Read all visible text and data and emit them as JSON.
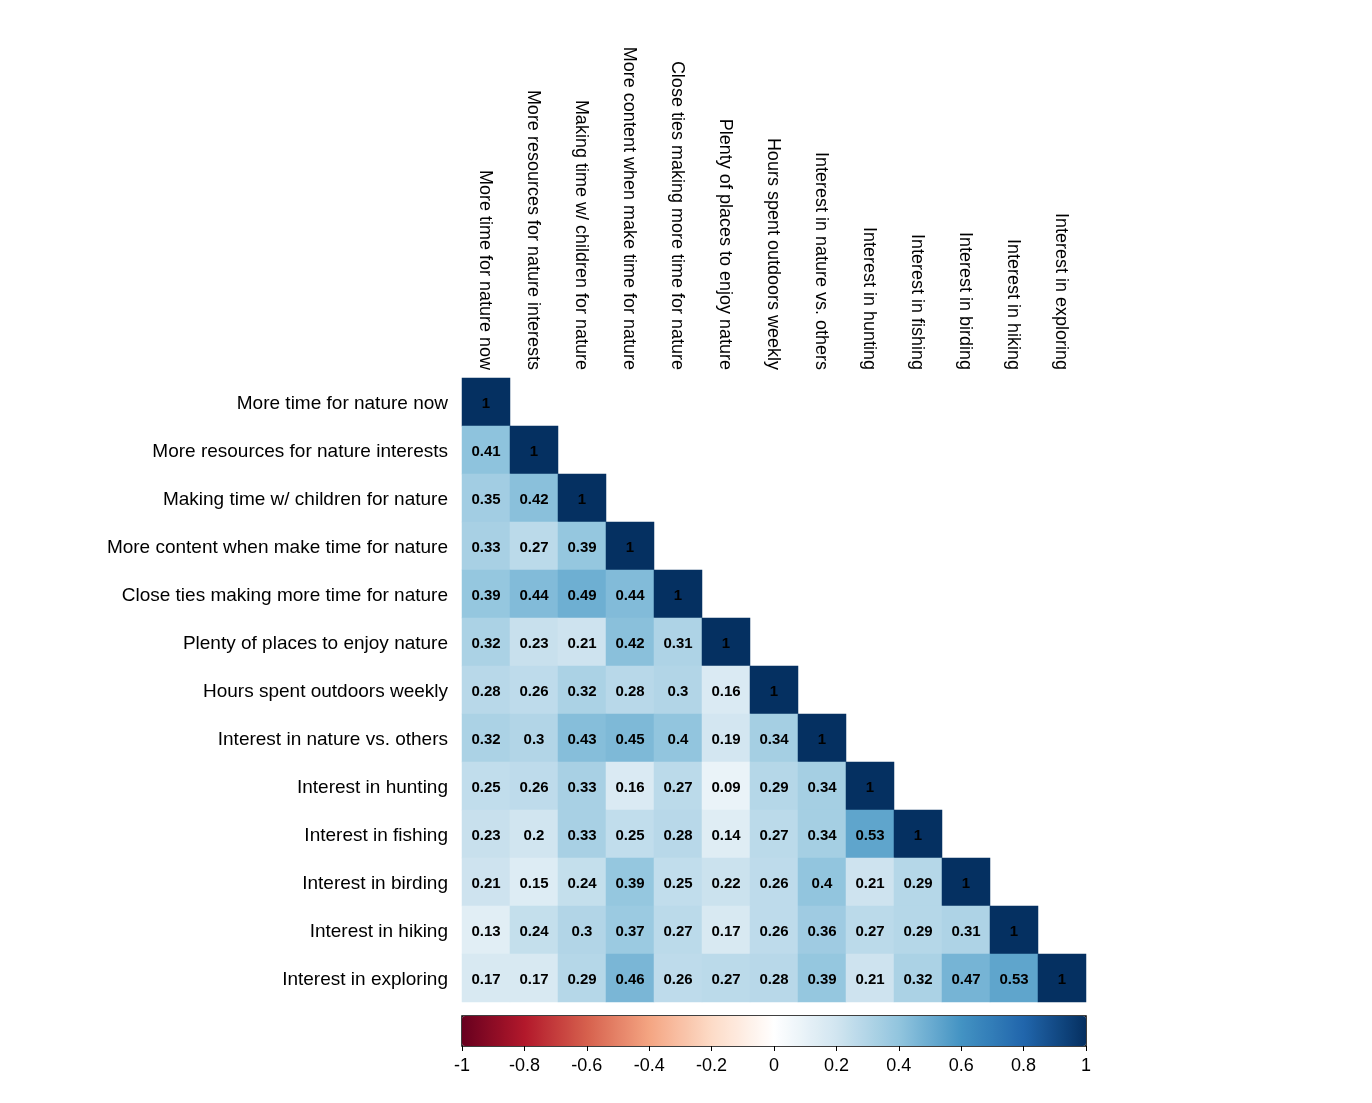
{
  "chart_data": {
    "type": "heatmap",
    "categories": [
      "More time for nature now",
      "More resources for nature interests",
      "Making time w/ children for nature",
      "More content when make time for nature",
      "Close ties making more time for nature",
      "Plenty of places to enjoy nature",
      "Hours spent outdoors weekly",
      "Interest in nature vs. others",
      "Interest in hunting",
      "Interest in fishing",
      "Interest in birding",
      "Interest in hiking",
      "Interest in exploring"
    ],
    "y_categories": [
      "More time for nature now",
      "More resources for nature interests",
      "Making time w/ children for nature",
      "More content when make time for nature",
      "Close ties making more time for nature",
      "Plenty of places to enjoy nature",
      "Hours spent outdoors weekly",
      "Interest in nature vs. others",
      "Interest in hunting",
      "Interest in fishing",
      "Interest in birding",
      "Interest in hiking",
      "Interest in exploring"
    ],
    "cells": [
      [
        1,
        null,
        null,
        null,
        null,
        null,
        null,
        null,
        null,
        null,
        null,
        null,
        null
      ],
      [
        0.41,
        1,
        null,
        null,
        null,
        null,
        null,
        null,
        null,
        null,
        null,
        null,
        null
      ],
      [
        0.35,
        0.42,
        1,
        null,
        null,
        null,
        null,
        null,
        null,
        null,
        null,
        null,
        null
      ],
      [
        0.33,
        0.27,
        0.39,
        1,
        null,
        null,
        null,
        null,
        null,
        null,
        null,
        null,
        null
      ],
      [
        0.39,
        0.44,
        0.49,
        0.44,
        1,
        null,
        null,
        null,
        null,
        null,
        null,
        null,
        null
      ],
      [
        0.32,
        0.23,
        0.21,
        0.42,
        0.31,
        1,
        null,
        null,
        null,
        null,
        null,
        null,
        null
      ],
      [
        0.28,
        0.26,
        0.32,
        0.28,
        0.3,
        0.16,
        1,
        null,
        null,
        null,
        null,
        null,
        null
      ],
      [
        0.32,
        0.3,
        0.43,
        0.45,
        0.4,
        0.19,
        0.34,
        1,
        null,
        null,
        null,
        null,
        null
      ],
      [
        0.25,
        0.26,
        0.33,
        0.16,
        0.27,
        0.09,
        0.29,
        0.34,
        1,
        null,
        null,
        null,
        null
      ],
      [
        0.23,
        0.2,
        0.33,
        0.25,
        0.28,
        0.14,
        0.27,
        0.34,
        0.53,
        1,
        null,
        null,
        null
      ],
      [
        0.21,
        0.15,
        0.24,
        0.39,
        0.25,
        0.22,
        0.26,
        0.4,
        0.21,
        0.29,
        1,
        null,
        null
      ],
      [
        0.13,
        0.24,
        0.3,
        0.37,
        0.27,
        0.17,
        0.26,
        0.36,
        0.27,
        0.29,
        0.31,
        1,
        null
      ],
      [
        0.17,
        0.17,
        0.29,
        0.46,
        0.26,
        0.27,
        0.28,
        0.39,
        0.21,
        0.32,
        0.47,
        0.53,
        1
      ]
    ],
    "clim": [
      -1,
      1
    ],
    "cticks": [
      -1,
      -0.8,
      -0.6,
      -0.4,
      -0.2,
      0,
      0.2,
      0.4,
      0.6,
      0.8,
      1
    ],
    "data_labels": true
  }
}
